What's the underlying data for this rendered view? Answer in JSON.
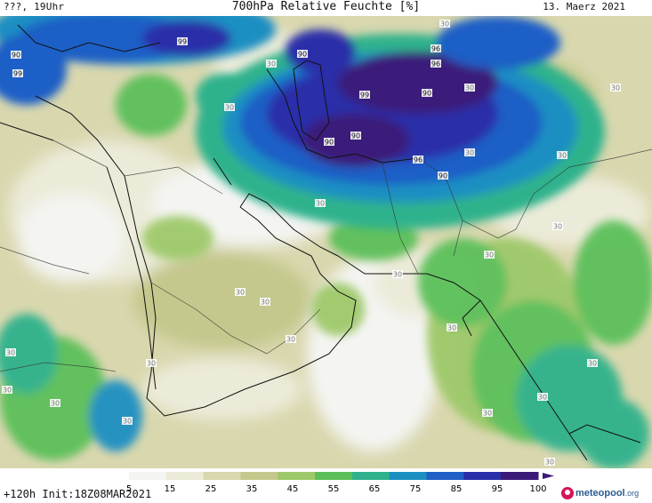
{
  "header": {
    "left": "???, 19Uhr",
    "title": "700hPa Relative Feuchte [%]",
    "date": "13. Maerz 2021"
  },
  "footer": {
    "run_info": "+120h  Init:18Z08MAR2021",
    "brand_main": "meteopool",
    "brand_suffix": ".org"
  },
  "legend": {
    "ticks": [
      "5",
      "15",
      "25",
      "35",
      "45",
      "55",
      "65",
      "75",
      "85",
      "95",
      "100"
    ],
    "colors": [
      "#f4f4f2",
      "#ecebd9",
      "#d9d7ae",
      "#c4c88c",
      "#9ec96a",
      "#5cc05a",
      "#2fb28c",
      "#1c8fc2",
      "#1f5fc6",
      "#2a2ea8",
      "#3b1a7a"
    ]
  },
  "contour_labels": [
    "90",
    "99",
    "99",
    "96",
    "90",
    "30",
    "30",
    "30",
    "96",
    "99",
    "90",
    "30",
    "30",
    "90",
    "90",
    "96",
    "90",
    "30",
    "30",
    "30",
    "30",
    "30",
    "30",
    "30",
    "30",
    "30",
    "30",
    "30",
    "30",
    "30",
    "30",
    "30",
    "30",
    "30",
    "30",
    "30"
  ]
}
